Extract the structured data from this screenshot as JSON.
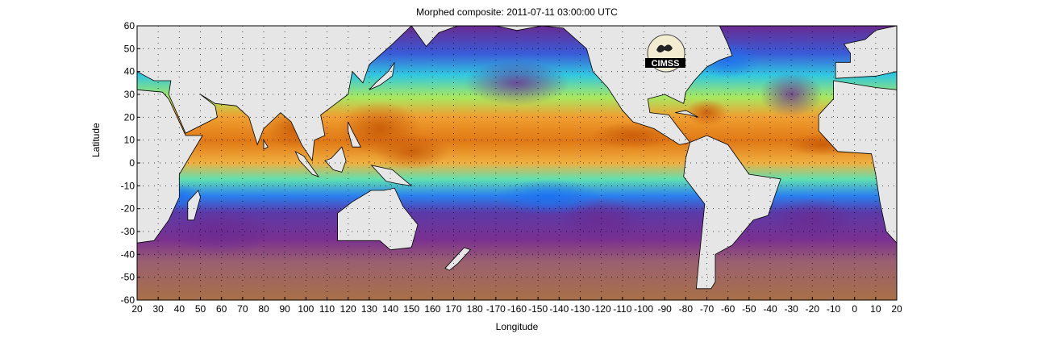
{
  "title": "Morphed composite: 2011-07-11 03:00:00 UTC",
  "map": {
    "xlabel": "Longitude",
    "ylabel": "Latitude",
    "lon_range": [
      20,
      380
    ],
    "lat_range": [
      -60,
      60
    ],
    "grid": "dotted",
    "x_ticks": [
      "20",
      "30",
      "40",
      "50",
      "60",
      "70",
      "80",
      "90",
      "100",
      "110",
      "120",
      "130",
      "140",
      "150",
      "160",
      "170",
      "180",
      "-170",
      "-160",
      "-150",
      "-140",
      "-130",
      "-120",
      "-110",
      "-100",
      "-90",
      "-80",
      "-70",
      "-60",
      "-50",
      "-40",
      "-30",
      "-20",
      "-10",
      "0",
      "10",
      "20"
    ],
    "y_ticks": [
      "60",
      "50",
      "40",
      "30",
      "20",
      "10",
      "0",
      "-10",
      "-20",
      "-30",
      "-40",
      "-50",
      "-60"
    ],
    "colors": {
      "land": "#e6e6e6",
      "dry": "#9a6a4a",
      "low": "#6a2a90",
      "mid_low": "#1a70f0",
      "mid": "#30e0d0",
      "mid_high": "#9af050",
      "high": "#f0a020",
      "very_high": "#c85a08"
    }
  },
  "logo": {
    "text": "CIMSS"
  }
}
